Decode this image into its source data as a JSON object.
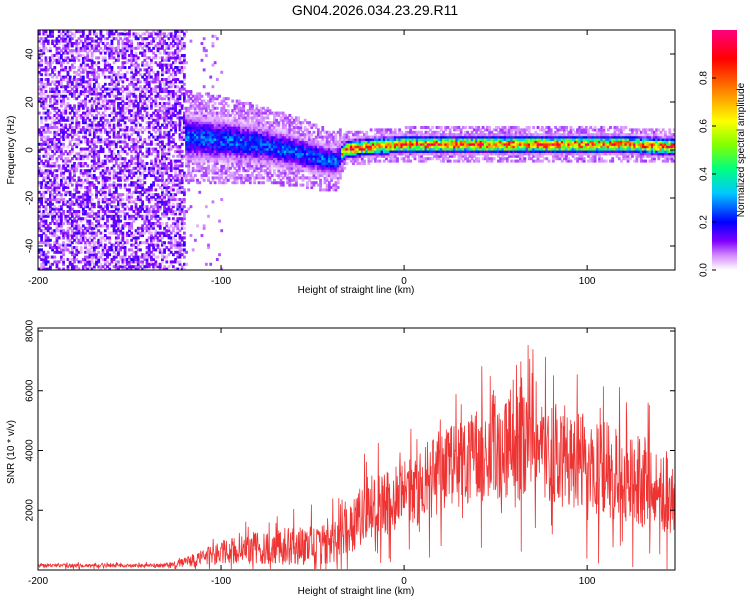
{
  "title": "GN04.2026.034.23.29.R11",
  "chart_data": [
    {
      "type": "heatmap",
      "xlabel": "Height of straight line (km)",
      "ylabel": "Frequency (Hz)",
      "xlim": [
        -200,
        148
      ],
      "ylim": [
        -50,
        50
      ],
      "xticks": [
        -200,
        -100,
        0,
        100
      ],
      "yticks": [
        -40,
        -20,
        0,
        20,
        40
      ],
      "colorbar": {
        "label": "Normalized spectral amplitude",
        "range": [
          0,
          1
        ],
        "ticks": [
          "0.0",
          "0.2",
          "0.4",
          "0.6",
          "0.8"
        ],
        "colors": [
          "#ffffff",
          "#d58cff",
          "#8000ff",
          "#0000ff",
          "#00c8ff",
          "#00ff80",
          "#80ff00",
          "#ffff00",
          "#ff8000",
          "#ff0000",
          "#ff0080"
        ]
      },
      "ridge": {
        "description_points_x": [
          -125,
          -100,
          -80,
          -60,
          -45,
          -38,
          -32,
          -20,
          0,
          40,
          80,
          120,
          148
        ],
        "description_points_y": [
          5,
          4,
          2,
          -1,
          -4,
          -5,
          0,
          1,
          2,
          2,
          2,
          2,
          1
        ]
      }
    },
    {
      "type": "line",
      "xlabel": "Height of straight line (km)",
      "ylabel": "SNR (10 * v/v)",
      "xlim": [
        -200,
        148
      ],
      "ylim": [
        0,
        8100
      ],
      "xticks": [
        -200,
        -100,
        0,
        100
      ],
      "yticks": [
        2000,
        4000,
        6000,
        8000
      ],
      "series": [
        {
          "name": "SNR",
          "color": "#ee3333",
          "envelope_x": [
            -200,
            -130,
            -120,
            -100,
            -80,
            -60,
            -40,
            -30,
            -20,
            0,
            20,
            40,
            60,
            80,
            100,
            120,
            148
          ],
          "envelope_mean": [
            150,
            150,
            250,
            600,
            750,
            800,
            900,
            1300,
            2100,
            2500,
            3300,
            3900,
            4100,
            3900,
            3600,
            3200,
            2600
          ],
          "envelope_spread": [
            80,
            80,
            200,
            500,
            700,
            800,
            900,
            1100,
            1300,
            1500,
            1800,
            2000,
            2200,
            2200,
            2100,
            2000,
            1800
          ]
        }
      ]
    }
  ]
}
